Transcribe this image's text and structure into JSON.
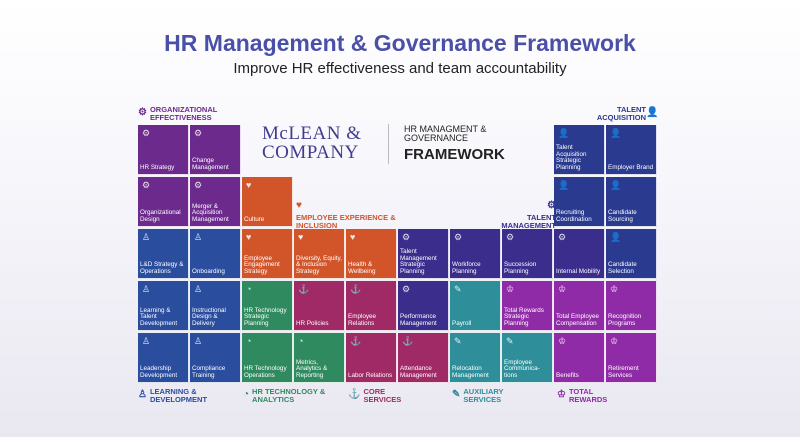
{
  "header": {
    "title": "HR Management & Governance Framework",
    "subtitle": "Improve HR effectiveness and team accountability"
  },
  "logo": {
    "line1": "McLEAN &",
    "line2": "COMPANY",
    "framework_line": "HR MANAGMENT & GOVERNANCE",
    "framework_word": "FRAMEWORK"
  },
  "categories": {
    "organizational_effectiveness": {
      "label": "ORGANIZATIONAL EFFECTIVENESS",
      "color": "#6b2a8c"
    },
    "talent_acquisition": {
      "label": "TALENT ACQUISITION",
      "color": "#2a3a8f"
    },
    "employee_experience": {
      "label": "EMPLOYEE EXPERIENCE & INCLUSION",
      "color": "#d2552a"
    },
    "talent_management": {
      "label": "TALENT MANAGEMENT",
      "color": "#3a2d8c"
    },
    "learning_development": {
      "label": "LEARNING & DEVELOPMENT",
      "color": "#2b4d9e"
    },
    "hr_technology": {
      "label": "HR TECHNOLOGY & ANALYTICS",
      "color": "#2f8a5f"
    },
    "core_services": {
      "label": "CORE SERVICES",
      "color": "#a02a66"
    },
    "auxiliary_services": {
      "label": "AUXILIARY SERVICES",
      "color": "#2e8f9a"
    },
    "total_rewards": {
      "label": "TOTAL REWARDS",
      "color": "#8f2ba6"
    }
  },
  "tiles": [
    {
      "label": "HR Strategy",
      "color": "#6b2a8c",
      "icon": "gears-icon"
    },
    {
      "label": "Change Management",
      "color": "#6b2a8c",
      "icon": "gears-icon"
    },
    {
      "label": "Organizational Design",
      "color": "#6b2a8c",
      "icon": "gears-icon"
    },
    {
      "label": "Merger & Acquisition Management",
      "color": "#6b2a8c",
      "icon": "gears-icon"
    },
    {
      "label": "Culture",
      "color": "#d2552a",
      "icon": "hand-heart-icon"
    },
    {
      "label": "L&D Strategy & Operations",
      "color": "#2b4d9e",
      "icon": "person-icon"
    },
    {
      "label": "Onboarding",
      "color": "#2b4d9e",
      "icon": "person-icon"
    },
    {
      "label": "Employee Engagement Strategy",
      "color": "#d2552a",
      "icon": "hand-heart-icon"
    },
    {
      "label": "Diversity, Equity, & Inclusion Strategy",
      "color": "#d2552a",
      "icon": "hand-heart-icon"
    },
    {
      "label": "Health & Wellbeing",
      "color": "#d2552a",
      "icon": "hand-heart-icon"
    },
    {
      "label": "Talent Management Strategic Planning",
      "color": "#3a2d8c",
      "icon": "gear-person-icon"
    },
    {
      "label": "Workforce Planning",
      "color": "#3a2d8c",
      "icon": "gear-person-icon"
    },
    {
      "label": "Succession Planning",
      "color": "#3a2d8c",
      "icon": "gear-person-icon"
    },
    {
      "label": "Internal Mobility",
      "color": "#3a2d8c",
      "icon": "gear-person-icon"
    },
    {
      "label": "Talent Acquisition Strategic Planning",
      "color": "#2a3a8f",
      "icon": "person-add-icon"
    },
    {
      "label": "Employer Brand",
      "color": "#2a3a8f",
      "icon": "person-add-icon"
    },
    {
      "label": "Recruiting Coordination",
      "color": "#2a3a8f",
      "icon": "person-add-icon"
    },
    {
      "label": "Candidate Sourcing",
      "color": "#2a3a8f",
      "icon": "person-add-icon"
    },
    {
      "label": "Candidate Selection",
      "color": "#2a3a8f",
      "icon": "person-add-icon"
    },
    {
      "label": "Learning & Talent Development",
      "color": "#2b4d9e",
      "icon": "person-icon"
    },
    {
      "label": "Instructional Design & Delivery",
      "color": "#2b4d9e",
      "icon": "person-icon"
    },
    {
      "label": "HR Technology Strategic Planning",
      "color": "#2f8a5f",
      "icon": "chart-icon"
    },
    {
      "label": "HR Policies",
      "color": "#a02a66",
      "icon": "anchor-icon"
    },
    {
      "label": "Employee Relations",
      "color": "#a02a66",
      "icon": "anchor-icon"
    },
    {
      "label": "Performance Management",
      "color": "#3a2d8c",
      "icon": "gear-person-icon"
    },
    {
      "label": "Payroll",
      "color": "#2e8f9a",
      "icon": "wrench-icon"
    },
    {
      "label": "Total Rewards Strategic Planning",
      "color": "#8f2ba6",
      "icon": "trophy-icon"
    },
    {
      "label": "Total Employee Compensation",
      "color": "#8f2ba6",
      "icon": "trophy-icon"
    },
    {
      "label": "Recognition Programs",
      "color": "#8f2ba6",
      "icon": "trophy-icon"
    },
    {
      "label": "Leadership Development",
      "color": "#2b4d9e",
      "icon": "person-icon"
    },
    {
      "label": "Compliance Training",
      "color": "#2b4d9e",
      "icon": "person-icon"
    },
    {
      "label": "HR Technology Operations",
      "color": "#2f8a5f",
      "icon": "chart-icon"
    },
    {
      "label": "Metrics, Analytics & Reporting",
      "color": "#2f8a5f",
      "icon": "chart-icon"
    },
    {
      "label": "Labor Relations",
      "color": "#a02a66",
      "icon": "anchor-icon"
    },
    {
      "label": "Attendance Management",
      "color": "#a02a66",
      "icon": "anchor-icon"
    },
    {
      "label": "Relocation Management",
      "color": "#2e8f9a",
      "icon": "wrench-icon"
    },
    {
      "label": "Employee Communica-tions",
      "color": "#2e8f9a",
      "icon": "wrench-icon"
    },
    {
      "label": "Benefits",
      "color": "#8f2ba6",
      "icon": "trophy-icon"
    },
    {
      "label": "Retirement Services",
      "color": "#8f2ba6",
      "icon": "trophy-icon"
    }
  ]
}
